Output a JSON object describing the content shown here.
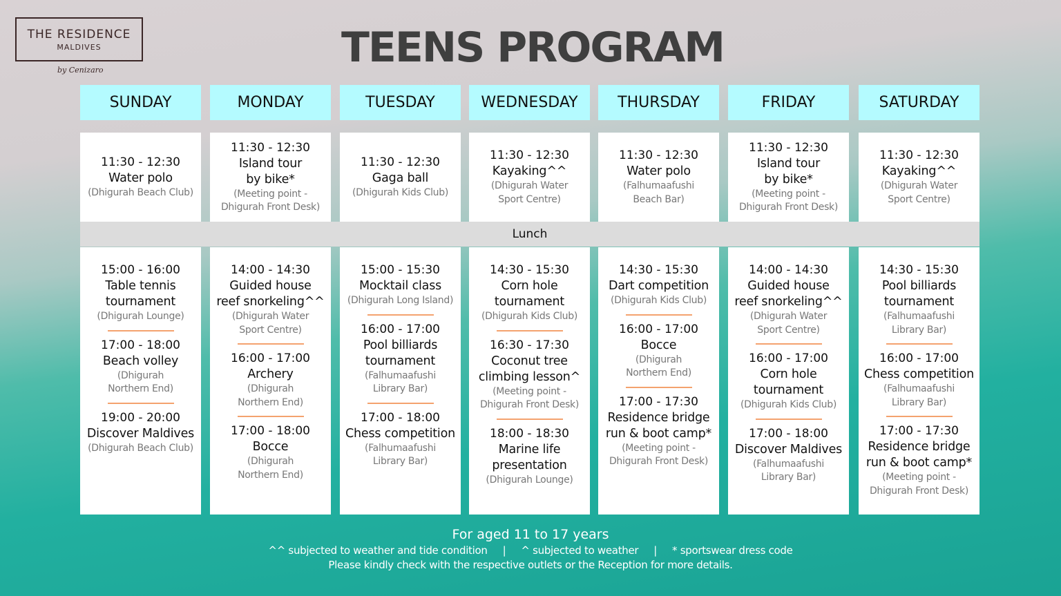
{
  "logo": {
    "line1": "THE RESIDENCE",
    "line2": "MALDIVES",
    "by": "by Cenizaro"
  },
  "title": "TEENS PROGRAM",
  "lunch": "Lunch",
  "days": [
    {
      "name": "SUNDAY",
      "morning": {
        "time": "11:30 - 12:30",
        "title": "Water polo",
        "location": "(Dhigurah Beach Club)"
      },
      "afternoon": [
        {
          "time": "15:00 - 16:00",
          "title": "Table tennis\ntournament",
          "location": "(Dhigurah Lounge)"
        },
        {
          "time": "17:00 - 18:00",
          "title": "Beach volley",
          "location": "(Dhigurah\nNorthern End)"
        },
        {
          "time": "19:00 - 20:00",
          "title": "Discover Maldives",
          "location": "(Dhigurah Beach Club)"
        }
      ]
    },
    {
      "name": "MONDAY",
      "morning": {
        "time": "11:30 - 12:30",
        "title": "Island tour\nby bike*",
        "location": "(Meeting point -\nDhigurah Front Desk)"
      },
      "afternoon": [
        {
          "time": "14:00 - 14:30",
          "title": "Guided house\nreef snorkeling^^",
          "location": "(Dhigurah Water\nSport Centre)"
        },
        {
          "time": "16:00 - 17:00",
          "title": "Archery",
          "location": "(Dhigurah\nNorthern End)"
        },
        {
          "time": "17:00 - 18:00",
          "title": "Bocce",
          "location": "(Dhigurah\nNorthern End)"
        }
      ]
    },
    {
      "name": "TUESDAY",
      "morning": {
        "time": "11:30 - 12:30",
        "title": "Gaga ball",
        "location": "(Dhigurah Kids Club)"
      },
      "afternoon": [
        {
          "time": "15:00 - 15:30",
          "title": "Mocktail class",
          "location": "(Dhigurah Long Island)"
        },
        {
          "time": "16:00 - 17:00",
          "title": "Pool billiards\ntournament",
          "location": "(Falhumaafushi\nLibrary Bar)"
        },
        {
          "time": "17:00 - 18:00",
          "title": "Chess competition",
          "location": "(Falhumaafushi\nLibrary Bar)"
        }
      ]
    },
    {
      "name": "WEDNESDAY",
      "morning": {
        "time": "11:30 - 12:30",
        "title": "Kayaking^^",
        "location": "(Dhigurah Water\nSport Centre)"
      },
      "afternoon": [
        {
          "time": "14:30 - 15:30",
          "title": "Corn hole\ntournament",
          "location": "(Dhigurah Kids Club)"
        },
        {
          "time": "16:30 - 17:30",
          "title": "Coconut tree\nclimbing lesson^",
          "location": "(Meeting point -\nDhigurah Front Desk)"
        },
        {
          "time": "18:00 - 18:30",
          "title": "Marine life\npresentation",
          "location": "(Dhigurah Lounge)"
        }
      ]
    },
    {
      "name": "THURSDAY",
      "morning": {
        "time": "11:30 - 12:30",
        "title": "Water polo",
        "location": "(Falhumaafushi\nBeach Bar)"
      },
      "afternoon": [
        {
          "time": "14:30 - 15:30",
          "title": "Dart competition",
          "location": "(Dhigurah Kids Club)"
        },
        {
          "time": "16:00 - 17:00",
          "title": "Bocce",
          "location": "(Dhigurah\nNorthern End)"
        },
        {
          "time": "17:00 - 17:30",
          "title": "Residence bridge\nrun & boot camp*",
          "location": "(Meeting point -\nDhigurah Front Desk)"
        }
      ]
    },
    {
      "name": "FRIDAY",
      "morning": {
        "time": "11:30 - 12:30",
        "title": "Island tour\nby bike*",
        "location": "(Meeting point -\nDhigurah Front Desk)"
      },
      "afternoon": [
        {
          "time": "14:00 - 14:30",
          "title": "Guided house\nreef snorkeling^^",
          "location": "(Dhigurah Water\nSport Centre)"
        },
        {
          "time": "16:00 - 17:00",
          "title": "Corn hole\ntournament",
          "location": "(Dhigurah Kids Club)"
        },
        {
          "time": "17:00 - 18:00",
          "title": "Discover Maldives",
          "location": "(Falhumaafushi\nLibrary Bar)"
        }
      ]
    },
    {
      "name": "SATURDAY",
      "morning": {
        "time": "11:30 - 12:30",
        "title": "Kayaking^^",
        "location": "(Dhigurah Water\nSport Centre)"
      },
      "afternoon": [
        {
          "time": "14:30 - 15:30",
          "title": "Pool billiards\ntournament",
          "location": "(Falhumaafushi\nLibrary Bar)"
        },
        {
          "time": "16:00 - 17:00",
          "title": "Chess competition",
          "location": "(Falhumaafushi\nLibrary Bar)"
        },
        {
          "time": "17:00 - 17:30",
          "title": "Residence bridge\nrun & boot camp*",
          "location": "(Meeting point -\nDhigurah Front Desk)"
        }
      ]
    }
  ],
  "footer": {
    "age": "For aged 11 to 17 years",
    "notes": [
      "^^ subjected to weather and tide condition",
      "^ subjected to weather",
      "* sportswear dress code"
    ],
    "separator": "|",
    "check": "Please kindly check with the respective outlets or the Reception for more details."
  },
  "colors": {
    "header": "#b4fbff",
    "divider": "#f4a26e",
    "title": "#3f3f3f"
  }
}
